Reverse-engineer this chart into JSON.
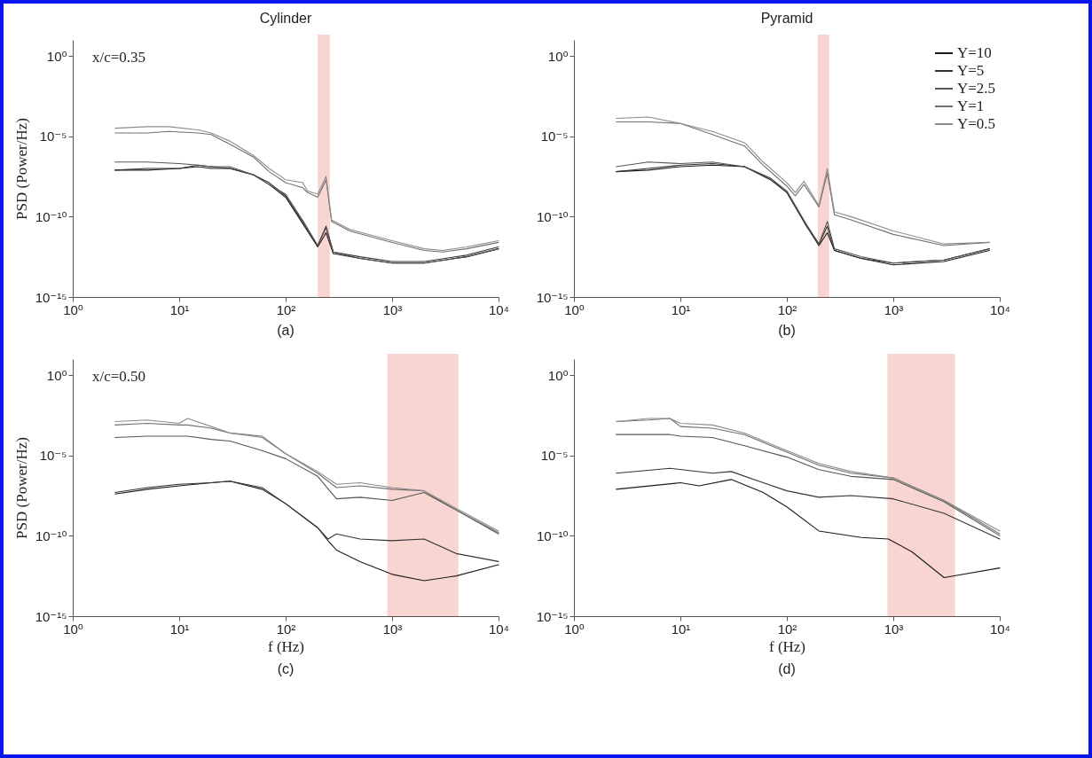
{
  "chart_data": [
    {
      "type": "line",
      "title": "Cylinder",
      "ylabel": "PSD (Power/Hz)",
      "annotations": [
        "x/c=0.35",
        "(a)"
      ],
      "log": "xy",
      "xlim": [
        1,
        10000
      ],
      "ylim": [
        1e-15,
        10
      ],
      "xticks": [
        {
          "value": 1,
          "label": "10⁰"
        },
        {
          "value": 10,
          "label": "10¹"
        },
        {
          "value": 100,
          "label": "10²"
        },
        {
          "value": 1000,
          "label": "10³"
        },
        {
          "value": 10000,
          "label": "10⁴"
        }
      ],
      "yticks": [
        {
          "value": 1,
          "label": "10⁰"
        },
        {
          "value": 1e-05,
          "label": "10⁻⁵"
        },
        {
          "value": 1e-10,
          "label": "10⁻¹⁰"
        },
        {
          "value": 1e-15,
          "label": "10⁻¹⁵"
        }
      ],
      "bands": [
        {
          "axis": "x",
          "from": 200,
          "to": 260,
          "color": "#f9d5d2"
        }
      ],
      "series": [
        {
          "color": "#1a1a1a",
          "x": [
            2.5,
            5,
            10,
            15,
            20,
            30,
            50,
            70,
            100,
            150,
            200,
            240,
            280,
            500,
            1000,
            2000,
            5000,
            10000
          ],
          "values": [
            7.9e-08,
            7.9e-08,
            1e-07,
            1.3e-07,
            1e-07,
            1e-07,
            4e-08,
            1e-08,
            1.6e-09,
            2.5e-11,
            1.3e-12,
            1e-11,
            5e-13,
            2.5e-13,
            1.3e-13,
            1.3e-13,
            3.2e-13,
            1e-12
          ]
        },
        {
          "color": "#333333",
          "x": [
            2.5,
            5,
            10,
            15,
            20,
            30,
            50,
            70,
            100,
            150,
            200,
            240,
            280,
            500,
            1000,
            2000,
            5000,
            10000
          ],
          "values": [
            7.9e-08,
            1e-07,
            1e-07,
            1.6e-07,
            1.3e-07,
            1e-07,
            4e-08,
            1.3e-08,
            2e-09,
            3.2e-11,
            1.6e-12,
            2.5e-11,
            6.3e-13,
            3.2e-13,
            1.6e-13,
            1.6e-13,
            4e-13,
            1.3e-12
          ]
        },
        {
          "color": "#555555",
          "x": [
            2.5,
            5,
            10,
            15,
            20,
            30,
            50,
            70,
            100,
            150,
            200,
            240,
            280,
            500,
            1000,
            2000,
            5000,
            10000
          ],
          "values": [
            2.5e-07,
            2.5e-07,
            2e-07,
            1.6e-07,
            1.3e-07,
            1.3e-07,
            4e-08,
            1e-08,
            2.5e-09,
            4e-11,
            1.6e-12,
            2e-11,
            6.3e-13,
            2.5e-13,
            1.3e-13,
            1.3e-13,
            3.2e-13,
            1e-12
          ]
        },
        {
          "color": "#707070",
          "x": [
            2.5,
            5,
            8,
            15,
            20,
            30,
            50,
            70,
            100,
            145,
            160,
            200,
            240,
            270,
            400,
            1000,
            2000,
            3000,
            5000,
            10000
          ],
          "values": [
            1.6e-05,
            1.6e-05,
            2e-05,
            1.6e-05,
            1.3e-05,
            3.2e-06,
            5e-07,
            6.3e-08,
            1.3e-08,
            6.3e-09,
            3.2e-09,
            1.6e-09,
            2e-08,
            5e-11,
            1.3e-11,
            2.5e-12,
            7.9e-13,
            6.3e-13,
            1e-12,
            2.5e-12
          ]
        },
        {
          "color": "#8c8c8c",
          "x": [
            2.5,
            5,
            8,
            15,
            20,
            30,
            50,
            70,
            100,
            145,
            160,
            200,
            240,
            270,
            400,
            1000,
            2000,
            3000,
            5000,
            10000
          ],
          "values": [
            3.2e-05,
            4e-05,
            4e-05,
            2.5e-05,
            1.6e-05,
            5e-06,
            6.3e-07,
            1e-07,
            2e-08,
            1.3e-08,
            4e-09,
            2.5e-09,
            3.2e-08,
            6.3e-11,
            1.6e-11,
            3.2e-12,
            1e-12,
            7.9e-13,
            1.3e-12,
            3.2e-12
          ]
        }
      ]
    },
    {
      "type": "line",
      "title": "Pyramid",
      "annotations": [
        "(b)"
      ],
      "log": "xy",
      "xlim": [
        1,
        10000
      ],
      "ylim": [
        1e-15,
        10
      ],
      "legend": "top right",
      "xticks": [
        {
          "value": 1,
          "label": "10⁰"
        },
        {
          "value": 10,
          "label": "10¹"
        },
        {
          "value": 100,
          "label": "10²"
        },
        {
          "value": 1000,
          "label": "10³"
        },
        {
          "value": 10000,
          "label": "10⁴"
        }
      ],
      "yticks": [
        {
          "value": 1,
          "label": "10⁰"
        },
        {
          "value": 1e-05,
          "label": "10⁻⁵"
        },
        {
          "value": 1e-10,
          "label": "10⁻¹⁰"
        },
        {
          "value": 1e-15,
          "label": "10⁻¹⁵"
        }
      ],
      "bands": [
        {
          "axis": "x",
          "from": 195,
          "to": 250,
          "color": "#f9d5d2"
        }
      ],
      "series": [
        {
          "name": "Y=10",
          "color": "#1a1a1a",
          "x": [
            2.5,
            5,
            10,
            20,
            40,
            70,
            100,
            150,
            200,
            240,
            280,
            500,
            1000,
            3000,
            8000
          ],
          "values": [
            6.3e-08,
            7.9e-08,
            1.3e-07,
            1.6e-07,
            1.3e-07,
            2e-08,
            3.2e-09,
            3.2e-11,
            1.6e-12,
            1e-11,
            7.9e-13,
            2.5e-13,
            1e-13,
            1.6e-13,
            7.9e-13
          ]
        },
        {
          "name": "Y=5",
          "color": "#333333",
          "x": [
            2.5,
            5,
            10,
            20,
            40,
            70,
            100,
            150,
            200,
            240,
            280,
            500,
            1000,
            3000,
            8000
          ],
          "values": [
            6.3e-08,
            1e-07,
            1.6e-07,
            2e-07,
            1.3e-07,
            2.5e-08,
            3.2e-09,
            3.2e-11,
            2e-12,
            2.5e-11,
            7.9e-13,
            2.5e-13,
            1.3e-13,
            2e-13,
            1e-12
          ]
        },
        {
          "name": "Y=2.5",
          "color": "#555555",
          "x": [
            2.5,
            5,
            10,
            20,
            40,
            70,
            100,
            150,
            200,
            240,
            280,
            500,
            1000,
            3000,
            8000
          ],
          "values": [
            1.3e-07,
            2.5e-07,
            2e-07,
            2.5e-07,
            1.3e-07,
            2.5e-08,
            4e-09,
            4e-11,
            2e-12,
            5e-11,
            1e-12,
            3.2e-13,
            1.3e-13,
            2e-13,
            1e-12
          ]
        },
        {
          "name": "Y=1",
          "color": "#707070",
          "x": [
            2.5,
            5,
            10,
            20,
            40,
            60,
            100,
            120,
            145,
            200,
            240,
            280,
            400,
            1000,
            3000,
            8000
          ],
          "values": [
            7.9e-05,
            7.9e-05,
            6.3e-05,
            1.3e-05,
            2.5e-06,
            1.6e-07,
            7.9e-09,
            2e-09,
            1e-08,
            4e-10,
            5e-08,
            1.3e-10,
            6.3e-11,
            7.9e-12,
            1.6e-12,
            2.5e-12
          ]
        },
        {
          "name": "Y=0.5",
          "color": "#8c8c8c",
          "x": [
            2.5,
            5,
            10,
            20,
            40,
            60,
            100,
            120,
            145,
            200,
            240,
            280,
            400,
            1000,
            3000,
            8000
          ],
          "values": [
            0.00013,
            0.00016,
            6.3e-05,
            2e-05,
            4e-06,
            2.5e-07,
            1.3e-08,
            3.2e-09,
            1.6e-08,
            5e-10,
            1e-07,
            2e-10,
            1e-10,
            1.3e-11,
            2e-12,
            2.5e-12
          ]
        }
      ]
    },
    {
      "type": "line",
      "xlabel": "f (Hz)",
      "ylabel": "PSD (Power/Hz)",
      "annotations": [
        "x/c=0.50",
        "(c)"
      ],
      "log": "xy",
      "xlim": [
        1,
        10000
      ],
      "ylim": [
        1e-15,
        10
      ],
      "xticks": [
        {
          "value": 1,
          "label": "10⁰"
        },
        {
          "value": 10,
          "label": "10¹"
        },
        {
          "value": 100,
          "label": "10²"
        },
        {
          "value": 1000,
          "label": "10³"
        },
        {
          "value": 10000,
          "label": "10⁴"
        }
      ],
      "yticks": [
        {
          "value": 1,
          "label": "10⁰"
        },
        {
          "value": 1e-05,
          "label": "10⁻⁵"
        },
        {
          "value": 1e-10,
          "label": "10⁻¹⁰"
        },
        {
          "value": 1e-15,
          "label": "10⁻¹⁵"
        }
      ],
      "bands": [
        {
          "axis": "x",
          "from": 900,
          "to": 4200,
          "color": "#f9d5d2"
        }
      ],
      "series": [
        {
          "color": "#1a1a1a",
          "x": [
            2.5,
            5,
            10,
            20,
            30,
            60,
            100,
            200,
            250,
            300,
            500,
            1000,
            2000,
            4000,
            10000
          ],
          "values": [
            4e-08,
            7.9e-08,
            1.3e-07,
            2e-07,
            2.5e-07,
            7.9e-08,
            1e-08,
            3.2e-10,
            5e-11,
            1.3e-11,
            2.5e-12,
            4e-13,
            1.6e-13,
            3.2e-13,
            1.6e-12
          ]
        },
        {
          "color": "#333333",
          "x": [
            2.5,
            5,
            10,
            20,
            30,
            60,
            100,
            200,
            250,
            300,
            500,
            1000,
            2000,
            4000,
            10000
          ],
          "values": [
            5e-08,
            1e-07,
            1.6e-07,
            2e-07,
            2.5e-07,
            1e-07,
            1e-08,
            3.2e-10,
            6.3e-11,
            1.3e-10,
            6.3e-11,
            5e-11,
            6.3e-11,
            7.9e-12,
            2.5e-12
          ]
        },
        {
          "color": "#555555",
          "x": [
            2.5,
            5,
            10,
            12,
            20,
            30,
            60,
            100,
            200,
            300,
            500,
            1000,
            2000,
            4000,
            10000
          ],
          "values": [
            0.00013,
            0.00016,
            0.00016,
            0.00016,
            0.0001,
            7.9e-05,
            2e-05,
            6.3e-06,
            5e-07,
            2e-08,
            2.5e-08,
            1.6e-08,
            5e-08,
            4e-09,
            1.3e-10
          ]
        },
        {
          "color": "#707070",
          "x": [
            2.5,
            5,
            10,
            12,
            20,
            30,
            60,
            100,
            200,
            300,
            500,
            1000,
            2000,
            4000,
            10000
          ],
          "values": [
            0.00079,
            0.001,
            0.00079,
            0.00079,
            0.0005,
            0.00025,
            0.00016,
            1.3e-05,
            7.9e-07,
            1e-07,
            1.3e-07,
            7.9e-08,
            6.3e-08,
            4e-09,
            1.6e-10
          ]
        },
        {
          "color": "#8c8c8c",
          "x": [
            2.5,
            5,
            10,
            12,
            20,
            30,
            60,
            100,
            200,
            300,
            500,
            1000,
            2000,
            4000,
            10000
          ],
          "values": [
            0.0013,
            0.0016,
            0.001,
            0.002,
            0.00063,
            0.00025,
            0.00013,
            1.3e-05,
            1e-06,
            1.6e-07,
            2e-07,
            1e-07,
            6.3e-08,
            5e-09,
            2e-10
          ]
        }
      ]
    },
    {
      "type": "line",
      "xlabel": "f (Hz)",
      "annotations": [
        "(d)"
      ],
      "log": "xy",
      "xlim": [
        1,
        10000
      ],
      "ylim": [
        1e-15,
        10
      ],
      "xticks": [
        {
          "value": 1,
          "label": "10⁰"
        },
        {
          "value": 10,
          "label": "10¹"
        },
        {
          "value": 100,
          "label": "10²"
        },
        {
          "value": 1000,
          "label": "10³"
        },
        {
          "value": 10000,
          "label": "10⁴"
        }
      ],
      "yticks": [
        {
          "value": 1,
          "label": "10⁰"
        },
        {
          "value": 1e-05,
          "label": "10⁻⁵"
        },
        {
          "value": 1e-10,
          "label": "10⁻¹⁰"
        },
        {
          "value": 1e-15,
          "label": "10⁻¹⁵"
        }
      ],
      "bands": [
        {
          "axis": "x",
          "from": 880,
          "to": 3800,
          "color": "#f9d5d2"
        }
      ],
      "series": [
        {
          "color": "#1a1a1a",
          "x": [
            2.5,
            10,
            15,
            30,
            60,
            100,
            200,
            500,
            900,
            1500,
            3000,
            10000
          ],
          "values": [
            7.9e-08,
            2e-07,
            1.3e-07,
            3.2e-07,
            5e-08,
            6.3e-09,
            2e-10,
            7.9e-11,
            6.3e-11,
            1e-11,
            2.5e-13,
            1e-12
          ]
        },
        {
          "color": "#333333",
          "x": [
            2.5,
            8,
            20,
            30,
            60,
            100,
            200,
            400,
            1000,
            3000,
            10000
          ],
          "values": [
            7.9e-07,
            1.6e-06,
            7.9e-07,
            1e-06,
            2e-07,
            6.3e-08,
            2.5e-08,
            3.2e-08,
            2e-08,
            2.5e-09,
            6.3e-11
          ]
        },
        {
          "color": "#555555",
          "x": [
            2.5,
            5,
            8,
            10,
            20,
            40,
            100,
            200,
            400,
            1000,
            3000,
            10000
          ],
          "values": [
            0.0002,
            0.0002,
            0.0002,
            0.00016,
            0.00013,
            4e-05,
            7.9e-06,
            1.3e-06,
            5e-07,
            3.2e-07,
            1.3e-08,
            1e-10
          ]
        },
        {
          "color": "#707070",
          "x": [
            2.5,
            5,
            8,
            10,
            20,
            40,
            100,
            200,
            400,
            1000,
            3000,
            10000
          ],
          "values": [
            0.0013,
            0.0016,
            0.002,
            0.00063,
            0.0005,
            0.0002,
            1.6e-05,
            2.5e-06,
            7.9e-07,
            4e-07,
            1.6e-08,
            1.3e-10
          ]
        },
        {
          "color": "#8c8c8c",
          "x": [
            2.5,
            5,
            8,
            10,
            20,
            40,
            100,
            200,
            400,
            1000,
            3000,
            10000
          ],
          "values": [
            0.0013,
            0.002,
            0.002,
            0.001,
            0.00079,
            0.00025,
            2e-05,
            3.2e-06,
            1e-06,
            4e-07,
            1.6e-08,
            2e-10
          ]
        }
      ]
    }
  ]
}
